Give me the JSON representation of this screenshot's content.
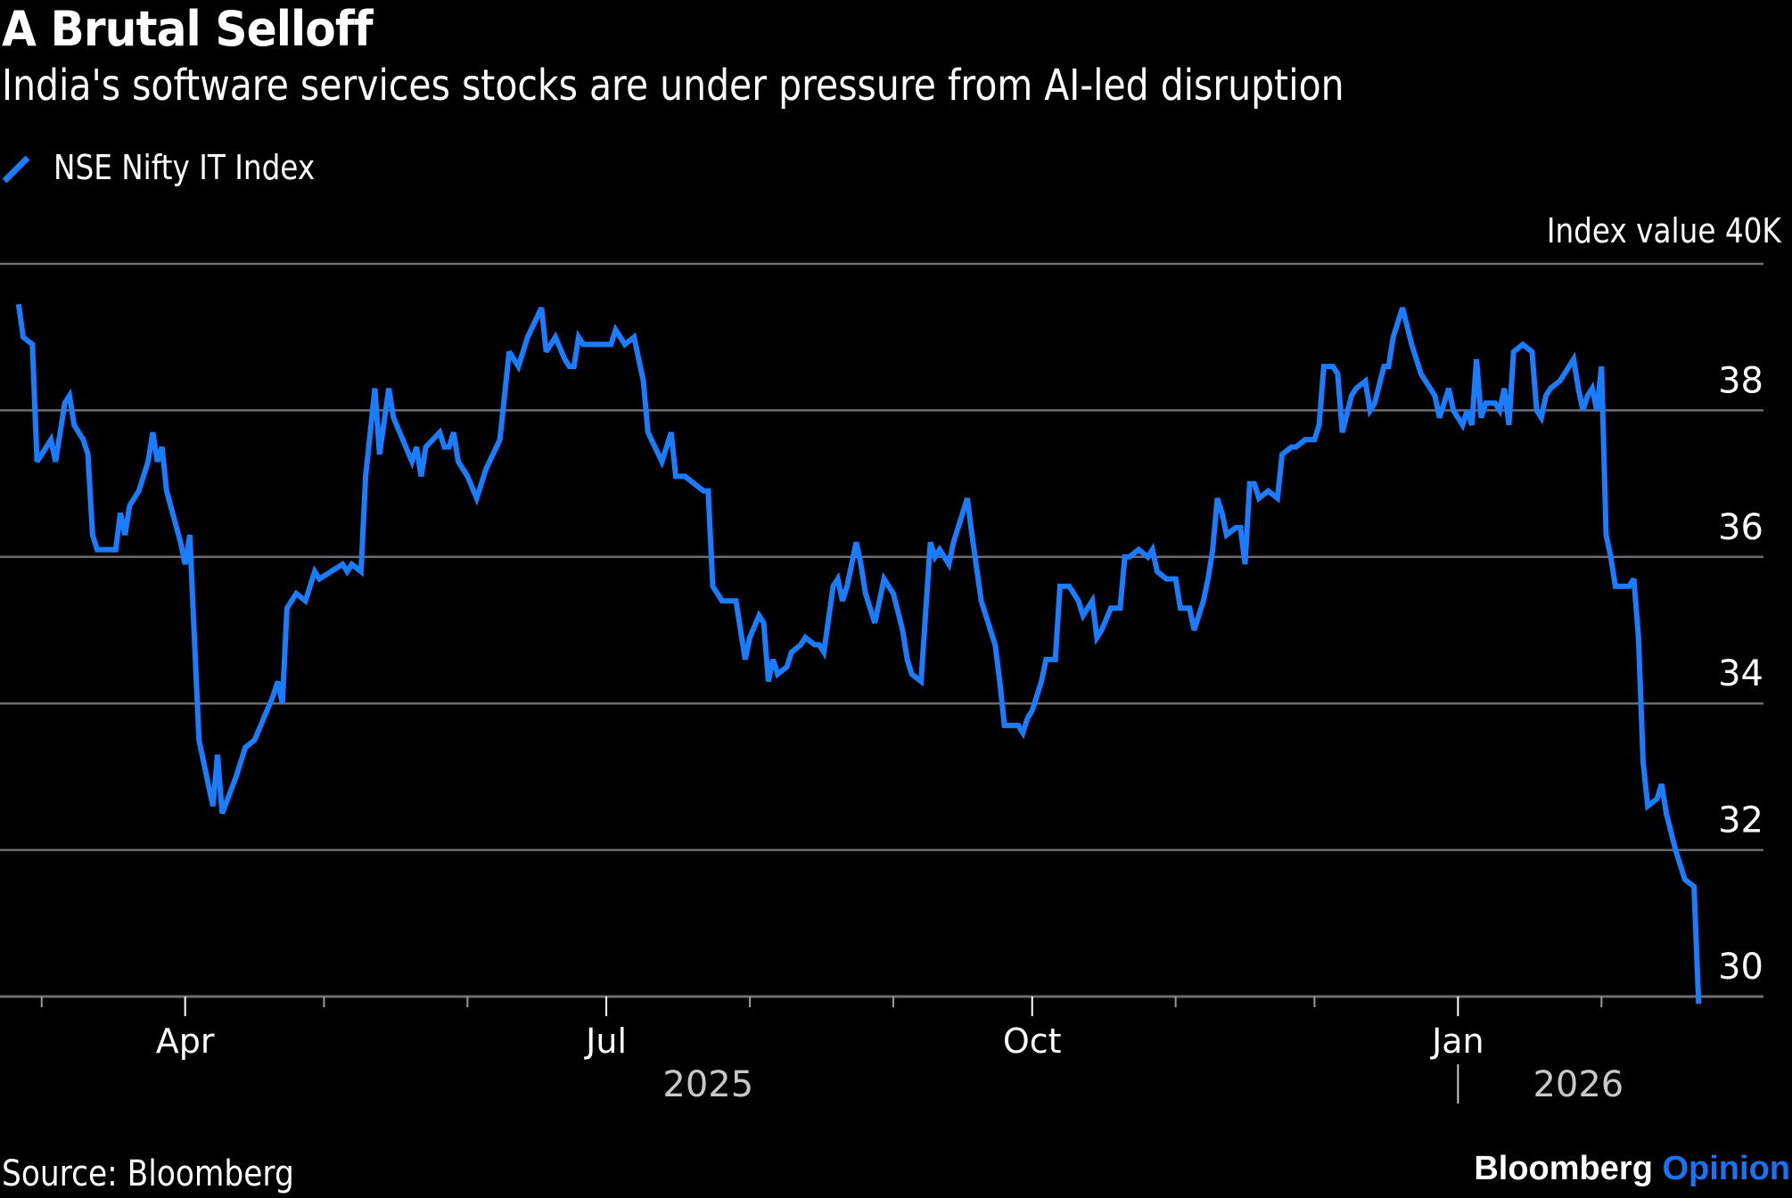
{
  "header": {
    "title": "A Brutal Selloff",
    "subtitle": "India's software services stocks are under pressure from AI-led disruption"
  },
  "legend": {
    "items": [
      {
        "label": "NSE Nifty IT Index",
        "color": "#1a7cff",
        "icon": "diagonal-line-swatch-icon"
      }
    ]
  },
  "footer": {
    "source": "Source: Bloomberg",
    "brand_primary": "Bloomberg",
    "brand_secondary": "Opinion",
    "brand_secondary_color": "#1a73f5"
  },
  "colors": {
    "background": "#000000",
    "series": "#1a7cff",
    "grid": "#6e6e6e",
    "text": "#ffffff",
    "year_text": "#c8c8c8"
  },
  "chart_data": {
    "type": "line",
    "title": "A Brutal Selloff",
    "subtitle": "India's software services stocks are under pressure from AI-led disruption",
    "xlabel": "",
    "ylabel": "Index value",
    "y_unit_label": "Index value 40K",
    "y_units": "thousands",
    "ylim": [
      30,
      40
    ],
    "y_ticks": [
      {
        "value": 40,
        "label": "40K"
      },
      {
        "value": 38,
        "label": "38"
      },
      {
        "value": 36,
        "label": "36"
      },
      {
        "value": 34,
        "label": "34"
      },
      {
        "value": 32,
        "label": "32"
      },
      {
        "value": 30,
        "label": "30"
      }
    ],
    "grid": true,
    "legend_position": "top-left",
    "x_unit": "days since 2025-04-01",
    "xlim": [
      -40,
      341
    ],
    "x_ticks": [
      {
        "day": -31,
        "label": "",
        "major": false
      },
      {
        "day": 0,
        "label": "Apr",
        "major": true
      },
      {
        "day": 30,
        "label": "",
        "major": false
      },
      {
        "day": 61,
        "label": "",
        "major": false
      },
      {
        "day": 91,
        "label": "Jul",
        "major": true
      },
      {
        "day": 122,
        "label": "",
        "major": false
      },
      {
        "day": 153,
        "label": "",
        "major": false
      },
      {
        "day": 183,
        "label": "Oct",
        "major": true
      },
      {
        "day": 214,
        "label": "",
        "major": false
      },
      {
        "day": 244,
        "label": "",
        "major": false
      },
      {
        "day": 275,
        "label": "Jan",
        "major": true
      },
      {
        "day": 306,
        "label": "",
        "major": false
      }
    ],
    "year_labels": [
      {
        "label": "2025",
        "center_day": 113
      },
      {
        "label": "2026",
        "center_day": 301,
        "separator_day": 275
      }
    ],
    "series": [
      {
        "name": "NSE Nifty IT Index",
        "color": "#1a7cff",
        "x": [
          -36,
          -35,
          -33,
          -32,
          -29,
          -28,
          -26,
          -25,
          -24,
          -22,
          -21,
          -20,
          -19,
          -15,
          -14,
          -13,
          -12,
          -10,
          -8,
          -7,
          -6,
          -5,
          -4,
          -1,
          0,
          1,
          2,
          3,
          5,
          6,
          7,
          8,
          11,
          13,
          15,
          17,
          19,
          20,
          21,
          22,
          23,
          24,
          26,
          28,
          29,
          34,
          35,
          36,
          38,
          39,
          41,
          42,
          44,
          45,
          49,
          50,
          51,
          52,
          55,
          56,
          57,
          58,
          59,
          61,
          63,
          65,
          68,
          70,
          72,
          74,
          77,
          78,
          80,
          82,
          83,
          84,
          85,
          86,
          88,
          90,
          91,
          92,
          93,
          95,
          97,
          99,
          100,
          103,
          105,
          106,
          108,
          110,
          112,
          113,
          114,
          116,
          117,
          119,
          121,
          122,
          124,
          125,
          126,
          127,
          128,
          130,
          131,
          133,
          134,
          136,
          137,
          138,
          140,
          141,
          142,
          143,
          145,
          146,
          147,
          149,
          150,
          151,
          153,
          155,
          156,
          157,
          159,
          161,
          162,
          163,
          165,
          166,
          169,
          170,
          172,
          174,
          175,
          176,
          177,
          179,
          180,
          181,
          182,
          183,
          185,
          186,
          188,
          189,
          191,
          193,
          194,
          196,
          197,
          198,
          200,
          202,
          203,
          204,
          206,
          208,
          209,
          210,
          212,
          214,
          215,
          217,
          218,
          220,
          221,
          222,
          223,
          224,
          225,
          227,
          228,
          229,
          230,
          231,
          232,
          234,
          236,
          237,
          239,
          240,
          242,
          244,
          245,
          246,
          248,
          249,
          250,
          252,
          253,
          255,
          256,
          257,
          259,
          260,
          261,
          263,
          265,
          267,
          269,
          270,
          271,
          273,
          274,
          276,
          277,
          278,
          279,
          280,
          281,
          283,
          284,
          285,
          286,
          287,
          289,
          291,
          292,
          293,
          294,
          295,
          297,
          299,
          300,
          301,
          302,
          303,
          304,
          305,
          306,
          307,
          308,
          309,
          312,
          313,
          314,
          315,
          316,
          318,
          319,
          320,
          322,
          324,
          326,
          327
        ],
        "values": [
          39.45,
          39.0,
          38.9,
          37.3,
          37.6,
          37.3,
          38.1,
          38.2,
          37.8,
          37.6,
          37.4,
          36.3,
          36.1,
          36.1,
          36.6,
          36.3,
          36.7,
          36.9,
          37.3,
          37.7,
          37.3,
          37.5,
          36.9,
          36.2,
          35.9,
          36.3,
          34.9,
          33.5,
          32.9,
          32.6,
          33.3,
          32.5,
          33.0,
          33.4,
          33.5,
          33.8,
          34.1,
          34.3,
          34.0,
          35.3,
          35.4,
          35.5,
          35.4,
          35.8,
          35.7,
          35.9,
          35.8,
          35.9,
          35.8,
          37.1,
          38.3,
          37.4,
          38.3,
          37.9,
          37.3,
          37.5,
          37.1,
          37.5,
          37.7,
          37.5,
          37.5,
          37.7,
          37.3,
          37.1,
          36.8,
          37.2,
          37.6,
          38.8,
          38.6,
          39.0,
          39.4,
          38.8,
          39.0,
          38.7,
          38.6,
          38.6,
          39.0,
          38.9,
          38.9,
          38.9,
          38.9,
          38.9,
          39.1,
          38.9,
          39.0,
          38.4,
          37.7,
          37.3,
          37.7,
          37.1,
          37.1,
          37.0,
          36.9,
          36.9,
          35.6,
          35.4,
          35.4,
          35.4,
          34.6,
          34.9,
          35.2,
          35.1,
          34.3,
          34.6,
          34.4,
          34.5,
          34.7,
          34.8,
          34.9,
          34.8,
          34.8,
          34.7,
          35.6,
          35.7,
          35.4,
          35.6,
          36.2,
          35.9,
          35.5,
          35.1,
          35.4,
          35.7,
          35.5,
          35.0,
          34.6,
          34.4,
          34.3,
          36.2,
          36.0,
          36.1,
          35.9,
          36.2,
          36.8,
          36.3,
          35.4,
          35.0,
          34.8,
          34.3,
          33.7,
          33.7,
          33.7,
          33.6,
          33.8,
          33.9,
          34.3,
          34.6,
          34.6,
          35.6,
          35.6,
          35.4,
          35.2,
          35.4,
          34.9,
          35.0,
          35.3,
          35.3,
          36.0,
          36.0,
          36.1,
          36.0,
          36.1,
          35.8,
          35.7,
          35.7,
          35.3,
          35.3,
          35.0,
          35.4,
          35.7,
          36.1,
          36.8,
          36.6,
          36.3,
          36.4,
          36.4,
          35.9,
          37.0,
          37.0,
          36.8,
          36.9,
          36.8,
          37.4,
          37.5,
          37.5,
          37.6,
          37.6,
          37.8,
          38.6,
          38.6,
          38.5,
          37.7,
          38.2,
          38.3,
          38.4,
          38.0,
          38.1,
          38.6,
          38.6,
          39.0,
          39.4,
          38.9,
          38.5,
          38.3,
          38.2,
          37.9,
          38.3,
          38.0,
          37.8,
          38.0,
          37.8,
          38.7,
          37.9,
          38.1,
          38.1,
          38.0,
          38.3,
          37.8,
          38.8,
          38.9,
          38.8,
          38.0,
          37.9,
          38.2,
          38.3,
          38.4,
          38.6,
          38.7,
          38.3,
          38.0,
          38.2,
          38.3,
          38.0,
          38.6,
          36.3,
          36.0,
          35.6,
          35.6,
          35.7,
          34.9,
          33.2,
          32.6,
          32.7,
          32.9,
          32.5,
          32.0,
          31.6,
          31.5,
          29.9
        ]
      }
    ]
  }
}
